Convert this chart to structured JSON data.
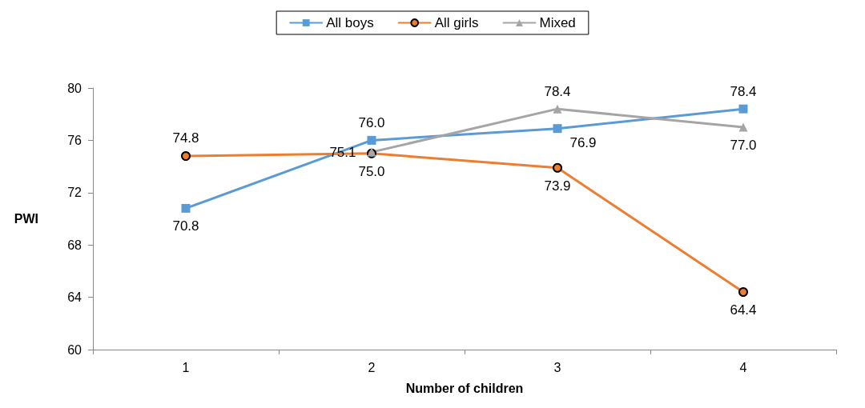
{
  "chart_data": {
    "type": "line",
    "xlabel": "Number of children",
    "ylabel": "PWI",
    "categories": [
      "1",
      "2",
      "3",
      "4"
    ],
    "series": [
      {
        "name": "All boys",
        "color": "#5b9bd5",
        "marker": "square",
        "values": [
          70.8,
          76.0,
          76.9,
          78.4
        ],
        "value_labels": [
          "70.8",
          "76.0",
          "76.9",
          "78.4"
        ]
      },
      {
        "name": "All girls",
        "color": "#ed7d31",
        "marker": "circle",
        "values": [
          74.8,
          75.0,
          73.9,
          64.4
        ],
        "value_labels": [
          "74.8",
          "75.0",
          "73.9",
          "64.4"
        ]
      },
      {
        "name": "Mixed",
        "color": "#a5a5a5",
        "marker": "triangle",
        "values": [
          null,
          75.1,
          78.4,
          77.0
        ],
        "value_labels": [
          null,
          "75.1",
          "78.4",
          "77.0"
        ]
      }
    ],
    "ylim": [
      60,
      80
    ],
    "yticks": [
      60,
      64,
      68,
      72,
      76,
      80
    ],
    "grid": false,
    "legend": "top"
  }
}
